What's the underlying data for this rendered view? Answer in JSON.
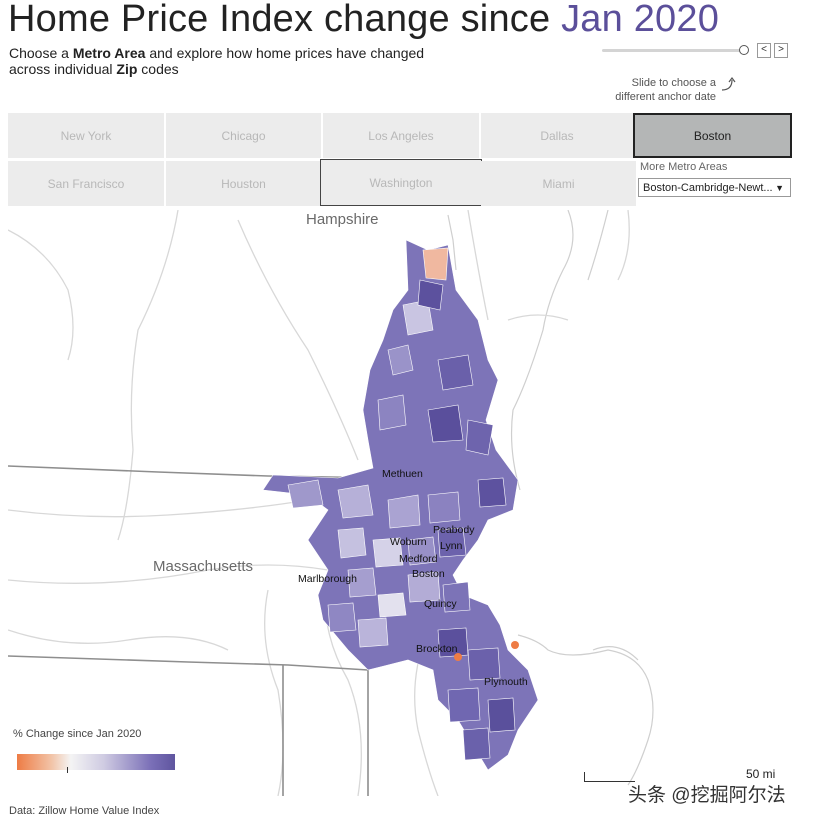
{
  "header": {
    "title_prefix": "Home Price Index change since",
    "title_date": "Jan 2020",
    "subtitle_1": "Choose a ",
    "subtitle_bold_1": "Metro Area",
    "subtitle_2": " and explore how home prices have changed across individual ",
    "subtitle_bold_2": "Zip",
    "subtitle_3": " codes"
  },
  "slider": {
    "hint": "Slide to choose a different anchor date",
    "prev_label": "<",
    "next_label": ">"
  },
  "metros": {
    "row1": [
      "New York",
      "Chicago",
      "Los Angeles",
      "Dallas",
      "Boston"
    ],
    "row2": [
      "San Francisco",
      "Houston",
      "Washington",
      "Miami"
    ],
    "selected": "Boston"
  },
  "more_metros": {
    "label": "More Metro Areas",
    "selected_value": "Boston-Cambridge-Newt..."
  },
  "map": {
    "state_labels": [
      "Hampshire",
      "Massachusetts"
    ],
    "city_labels": [
      "Methuen",
      "Peabody",
      "Lynn",
      "Woburn",
      "Medford",
      "Boston",
      "Marlborough",
      "Quincy",
      "Brockton",
      "Plymouth"
    ]
  },
  "legend": {
    "title": "% Change since Jan 2020",
    "low_color": "#ee7c45",
    "mid_color": "#f4f4f4",
    "high_color": "#5f559f"
  },
  "scale": {
    "label": "50 mi"
  },
  "source": "Data: Zillow Home Value Index",
  "watermark": "头条 @挖掘阿尔法"
}
